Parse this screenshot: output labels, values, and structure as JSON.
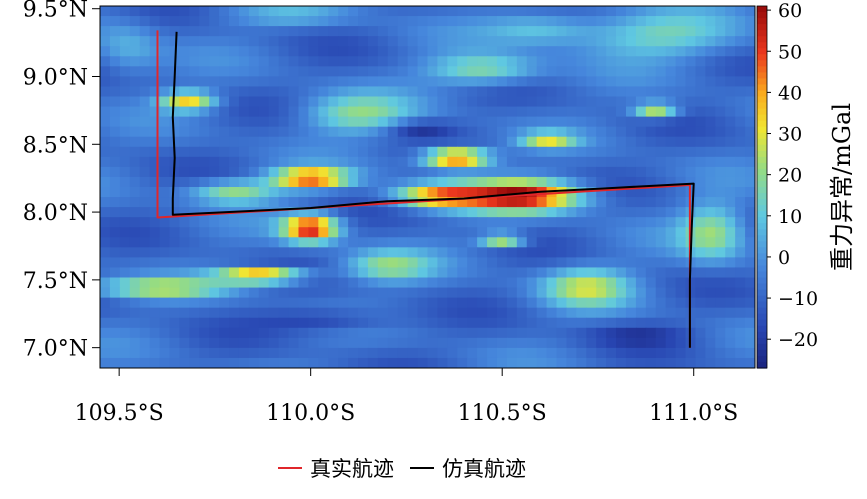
{
  "chart_data": {
    "type": "heatmap",
    "colorbar": {
      "title": "重力异常/mGal",
      "range": [
        -27,
        61
      ],
      "ticks": [
        -20,
        -10,
        0,
        10,
        20,
        30,
        40,
        50,
        60
      ],
      "tick_labels": [
        "−20",
        "−10",
        "0",
        "10",
        "20",
        "30",
        "40",
        "50",
        "60"
      ]
    },
    "x_axis": {
      "range": [
        109.45,
        111.16
      ],
      "ticks": [
        109.5,
        110.0,
        110.5,
        111.0
      ],
      "tick_labels": [
        "109.5°S",
        "110.0°S",
        "110.5°S",
        "111.0°S"
      ]
    },
    "y_axis": {
      "range": [
        6.85,
        9.52
      ],
      "ticks": [
        7.0,
        7.5,
        8.0,
        8.5,
        9.0,
        9.5
      ],
      "tick_labels": [
        "7.0°N",
        "7.5°N",
        "8.0°N",
        "8.5°N",
        "9.0°N",
        "9.5°N"
      ]
    },
    "field_background": -8,
    "anomalies": [
      {
        "lon": 110.55,
        "lat": 8.12,
        "value": 58,
        "slon": 0.11,
        "slat": 0.08
      },
      {
        "lon": 110.33,
        "lat": 8.12,
        "value": 38,
        "slon": 0.08,
        "slat": 0.06
      },
      {
        "lon": 110.38,
        "lat": 8.4,
        "value": 55,
        "slon": 0.06,
        "slat": 0.05
      },
      {
        "lon": 110.0,
        "lat": 8.25,
        "value": 50,
        "slon": 0.07,
        "slat": 0.05
      },
      {
        "lon": 110.0,
        "lat": 7.88,
        "value": 55,
        "slon": 0.05,
        "slat": 0.07
      },
      {
        "lon": 109.87,
        "lat": 7.53,
        "value": 52,
        "slon": 0.08,
        "slat": 0.035
      },
      {
        "lon": 109.6,
        "lat": 7.44,
        "value": 24,
        "slon": 0.12,
        "slat": 0.05
      },
      {
        "lon": 109.68,
        "lat": 8.82,
        "value": 34,
        "slon": 0.05,
        "slat": 0.05
      },
      {
        "lon": 110.5,
        "lat": 7.8,
        "value": 38,
        "slon": 0.04,
        "slat": 0.03
      },
      {
        "lon": 110.9,
        "lat": 8.75,
        "value": 30,
        "slon": 0.04,
        "slat": 0.04
      },
      {
        "lon": 110.62,
        "lat": 8.53,
        "value": 25,
        "slon": 0.05,
        "slat": 0.04
      },
      {
        "lon": 110.72,
        "lat": 7.45,
        "value": 24,
        "slon": 0.08,
        "slat": 0.1
      },
      {
        "lon": 110.12,
        "lat": 8.72,
        "value": 18,
        "slon": 0.1,
        "slat": 0.1
      },
      {
        "lon": 110.45,
        "lat": 9.05,
        "value": 20,
        "slon": 0.1,
        "slat": 0.08
      },
      {
        "lon": 109.8,
        "lat": 8.15,
        "value": 22,
        "slon": 0.08,
        "slat": 0.06
      },
      {
        "lon": 110.2,
        "lat": 7.6,
        "value": 18,
        "slon": 0.08,
        "slat": 0.08
      },
      {
        "lon": 110.9,
        "lat": 9.3,
        "value": 14,
        "slon": 0.15,
        "slat": 0.12
      },
      {
        "lon": 111.05,
        "lat": 7.85,
        "value": 20,
        "slon": 0.06,
        "slat": 0.15
      },
      {
        "lon": 110.28,
        "lat": 8.62,
        "value": -24,
        "slon": 0.06,
        "slat": 0.04
      },
      {
        "lon": 110.05,
        "lat": 7.2,
        "value": -22,
        "slon": 0.12,
        "slat": 0.06
      },
      {
        "lon": 110.85,
        "lat": 7.1,
        "value": -18,
        "slon": 0.1,
        "slat": 0.06
      },
      {
        "lon": 109.52,
        "lat": 9.2,
        "value": 6,
        "slon": 0.06,
        "slat": 0.15
      },
      {
        "lon": 109.95,
        "lat": 9.45,
        "value": 4,
        "slon": 0.12,
        "slat": 0.06
      },
      {
        "lon": 110.6,
        "lat": 9.35,
        "value": 10,
        "slon": 0.1,
        "slat": 0.08
      }
    ],
    "series": [
      {
        "name": "真实航迹",
        "color": "#e0262b",
        "points": [
          [
            109.6,
            9.34
          ],
          [
            109.6,
            7.96
          ],
          [
            110.99,
            8.2
          ],
          [
            110.99,
            7.0
          ]
        ]
      },
      {
        "name": "仿真航迹",
        "color": "#000000",
        "points": [
          [
            109.65,
            9.33
          ],
          [
            109.645,
            9.0
          ],
          [
            109.64,
            8.7
          ],
          [
            109.645,
            8.4
          ],
          [
            109.64,
            8.1
          ],
          [
            109.64,
            7.98
          ],
          [
            110.0,
            8.03
          ],
          [
            110.2,
            8.08
          ],
          [
            110.4,
            8.1
          ],
          [
            110.6,
            8.15
          ],
          [
            110.8,
            8.18
          ],
          [
            111.0,
            8.21
          ],
          [
            110.995,
            7.9
          ],
          [
            110.99,
            7.5
          ],
          [
            110.99,
            7.0
          ]
        ]
      }
    ]
  },
  "legend": {
    "items": [
      {
        "label": "真实航迹",
        "color": "#e0262b"
      },
      {
        "label": "仿真航迹",
        "color": "#000000"
      }
    ]
  }
}
